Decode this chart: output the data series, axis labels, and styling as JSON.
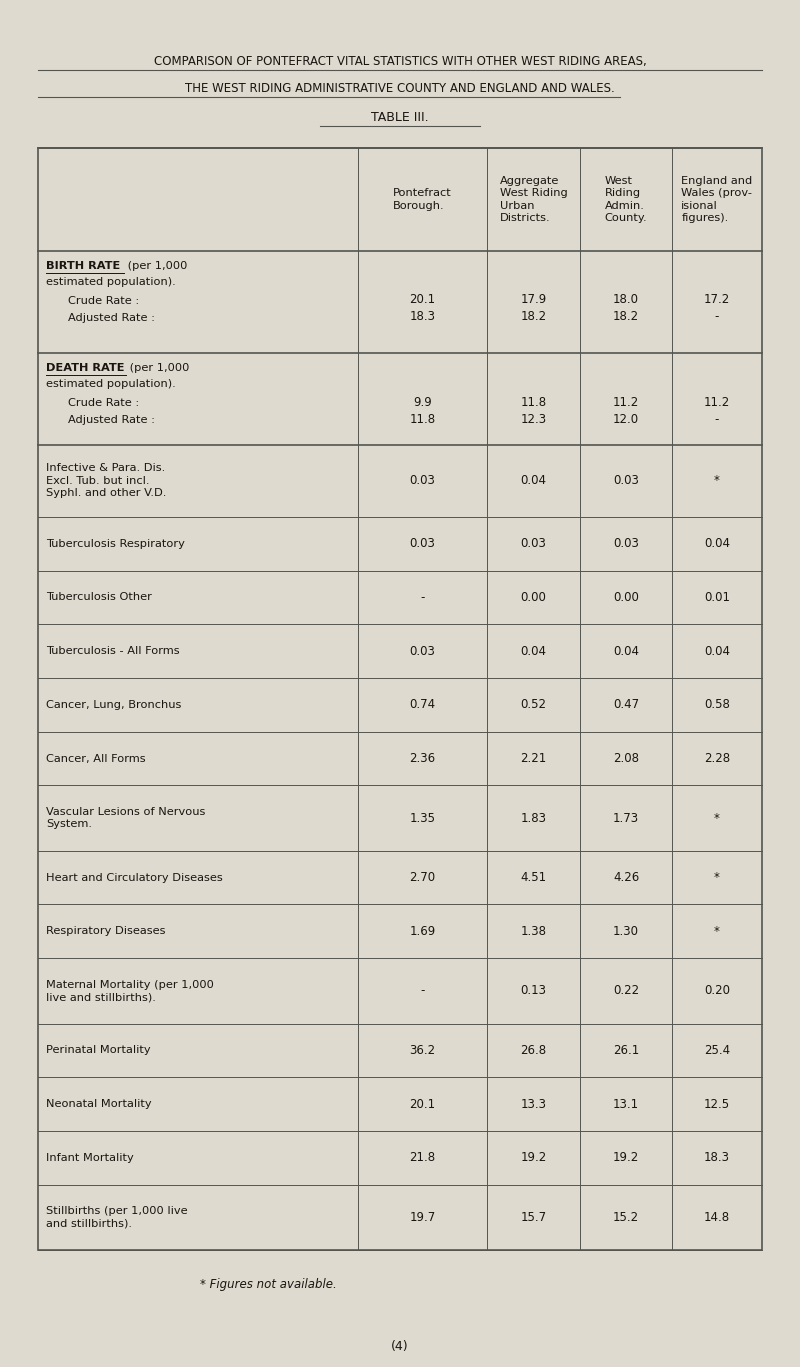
{
  "title1": "COMPARISON OF PONTEFRACT VITAL STATISTICS WITH OTHER WEST RIDING AREAS,",
  "title2": "THE WEST RIDING ADMINISTRATIVE COUNTY AND ENGLAND AND WALES.",
  "title3": "TABLE III.",
  "bg_color": "#dedad0",
  "text_color": "#1a1510",
  "line_color": "#555550",
  "col_headers": [
    "Pontefract\nBorough.",
    "Aggregate\nWest Riding\nUrban\nDistricts.",
    "West\nRiding\nAdmin.\nCounty.",
    "England and\nWales (prov-\nisional\nfigures)."
  ],
  "birth_rate_vals_crude": [
    "20.1",
    "17.9",
    "18.0",
    "17.2"
  ],
  "birth_rate_vals_adjusted": [
    "18.3",
    "18.2",
    "18.2",
    "-"
  ],
  "death_rate_vals_crude": [
    "9.9",
    "11.8",
    "11.2",
    "11.2"
  ],
  "death_rate_vals_adjusted": [
    "11.8",
    "12.3",
    "12.0",
    "-"
  ],
  "rows": [
    {
      "label": "Infective & Para. Dis.\nExcl. Tub. but incl.\nSyphl. and other V.D.",
      "vals": [
        "0.03",
        "0.04",
        "0.03",
        "*"
      ]
    },
    {
      "label": "Tuberculosis Respiratory",
      "vals": [
        "0.03",
        "0.03",
        "0.03",
        "0.04"
      ]
    },
    {
      "label": "Tuberculosis Other",
      "vals": [
        "-",
        "0.00",
        "0.00",
        "0.01"
      ]
    },
    {
      "label": "Tuberculosis - All Forms",
      "vals": [
        "0.03",
        "0.04",
        "0.04",
        "0.04"
      ]
    },
    {
      "label": "Cancer, Lung, Bronchus",
      "vals": [
        "0.74",
        "0.52",
        "0.47",
        "0.58"
      ]
    },
    {
      "label": "Cancer, All Forms",
      "vals": [
        "2.36",
        "2.21",
        "2.08",
        "2.28"
      ]
    },
    {
      "label": "Vascular Lesions of Nervous\nSystem.",
      "vals": [
        "1.35",
        "1.83",
        "1.73",
        "*"
      ]
    },
    {
      "label": "Heart and Circulatory Diseases",
      "vals": [
        "2.70",
        "4.51",
        "4.26",
        "*"
      ]
    },
    {
      "label": "Respiratory Diseases",
      "vals": [
        "1.69",
        "1.38",
        "1.30",
        "*"
      ]
    },
    {
      "label": "Maternal Mortality (per 1,000\nlive and stillbirths).",
      "vals": [
        "-",
        "0.13",
        "0.22",
        "0.20"
      ]
    },
    {
      "label": "Perinatal Mortality",
      "vals": [
        "36.2",
        "26.8",
        "26.1",
        "25.4"
      ]
    },
    {
      "label": "Neonatal Mortality",
      "vals": [
        "20.1",
        "13.3",
        "13.1",
        "12.5"
      ]
    },
    {
      "label": "Infant Mortality",
      "vals": [
        "21.8",
        "19.2",
        "19.2",
        "18.3"
      ]
    },
    {
      "label": "Stillbirths (per 1,000 live\nand stillbirths).",
      "vals": [
        "19.7",
        "15.7",
        "15.2",
        "14.8"
      ]
    }
  ],
  "footnote": "* Figures not available.",
  "page_num": "(4)",
  "fig_width": 8.0,
  "fig_height": 13.67,
  "dpi": 100
}
